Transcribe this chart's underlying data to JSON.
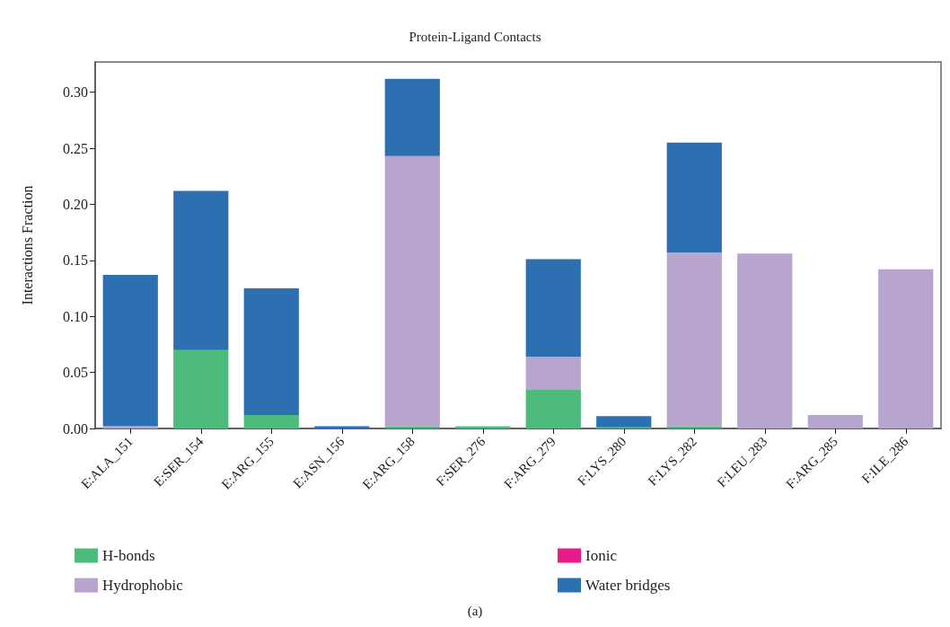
{
  "chart_data": {
    "type": "bar",
    "title": "Protein-Ligand Contacts",
    "ylabel": "Interactions Fraction",
    "stacked": true,
    "legend": "bottom",
    "grid": false,
    "categories": [
      "E:ALA_151",
      "E:SER_154",
      "E:ARG_155",
      "E:ASN_156",
      "E:ARG_158",
      "F:SER_276",
      "F:ARG_279",
      "F:LYS_280",
      "F:LYS_282",
      "F:LEU_283",
      "F:ARG_285",
      "F:ILE_286"
    ],
    "series": [
      {
        "name": "H-bonds",
        "color": "#4cbb7c",
        "values": [
          0,
          0.07,
          0.012,
          0,
          0.002,
          0.002,
          0.035,
          0.001,
          0.002,
          0,
          0,
          0
        ]
      },
      {
        "name": "Hydrophobic",
        "color": "#b7a5ce",
        "values": [
          0.002,
          0,
          0,
          0,
          0.241,
          0,
          0.029,
          0,
          0.155,
          0.156,
          0.012,
          0.142
        ]
      },
      {
        "name": "Ionic",
        "color": "#e8198b",
        "values": [
          0,
          0,
          0,
          0,
          0,
          0,
          0,
          0,
          0,
          0,
          0,
          0
        ]
      },
      {
        "name": "Water bridges",
        "color": "#2c70b1",
        "values": [
          0.135,
          0.142,
          0.113,
          0.002,
          0.069,
          0,
          0.087,
          0.01,
          0.098,
          0,
          0,
          0
        ]
      }
    ],
    "ylim": [
      0,
      0.327
    ],
    "yticks": [
      {
        "value": 0,
        "label": "0.00"
      },
      {
        "value": 0.05,
        "label": "0.05"
      },
      {
        "value": 0.1,
        "label": "0.10"
      },
      {
        "value": 0.15,
        "label": "0.15"
      },
      {
        "value": 0.2,
        "label": "0.20"
      },
      {
        "value": 0.25,
        "label": "0.25"
      },
      {
        "value": 0.3,
        "label": "0.30"
      }
    ],
    "annotations": [
      "(a)"
    ]
  }
}
